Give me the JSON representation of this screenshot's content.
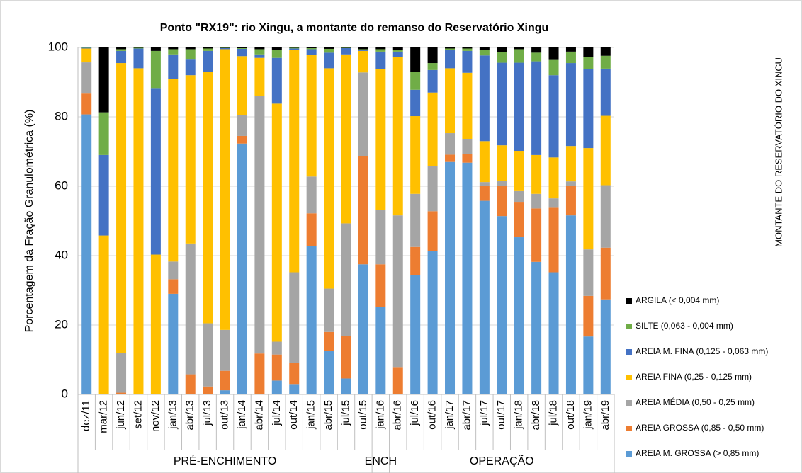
{
  "chart_data": {
    "type": "stacked_bar",
    "title": "Ponto \"RX19\": rio Xingu, a montante do remanso do Reservatório Xingu",
    "y_label": "Porcentagem da Fração Granulométrica (%)",
    "side_label": "MONTANTE DO RESERVATÓRIO DO XINGU",
    "categories": [
      "dez/11",
      "mar/12",
      "jun/12",
      "set/12",
      "nov/12",
      "jan/13",
      "abr/13",
      "jul/13",
      "out/13",
      "jan/14",
      "abr/14",
      "jul/14",
      "out/14",
      "jan/15",
      "abr/15",
      "jul/15",
      "out/15",
      "jan/16",
      "abr/16",
      "jul/16",
      "out/16",
      "jan/17",
      "abr/17",
      "jul/17",
      "out/17",
      "jan/18",
      "abr/18",
      "jul/18",
      "out/18",
      "jan/19",
      "abr/19"
    ],
    "groups": [
      {
        "label": "PRÉ-ENCHIMENTO",
        "count": 17
      },
      {
        "label": "ENCH",
        "count": 1
      },
      {
        "label": "OPERAÇÃO",
        "count": 13
      }
    ],
    "series": [
      {
        "name": "AREIA M. GROSSA (> 0,85 mm)",
        "color": "#5b9bd5",
        "values": [
          80.7,
          0,
          0,
          0,
          0,
          29,
          0,
          0,
          1.2,
          72.3,
          0,
          4,
          2.8,
          42.8,
          12.6,
          4.6,
          37.5,
          25.3,
          0,
          34.4,
          41.3,
          67,
          66.8,
          55.8,
          51.4,
          45.3,
          38.2,
          35.2,
          51.6,
          16.7,
          27.4
        ]
      },
      {
        "name": "AREIA GROSSA (0,85 - 0,50 mm)",
        "color": "#ed7d31",
        "values": [
          6,
          0,
          0.5,
          0,
          0,
          4.2,
          5.8,
          2.3,
          5.6,
          2.2,
          11.8,
          7.5,
          6.3,
          9.4,
          5.4,
          12.2,
          31.1,
          12.2,
          7.7,
          8.1,
          11.5,
          2.1,
          2.5,
          4.4,
          8.6,
          10.2,
          15.4,
          18.6,
          8.4,
          11.7,
          14.9
        ]
      },
      {
        "name": "AREIA MÉDIA (0,50 - 0,25 mm)",
        "color": "#a5a5a5",
        "values": [
          9,
          0,
          11.5,
          0.2,
          0,
          5.1,
          37.7,
          18.2,
          11.8,
          6,
          74.2,
          3.7,
          26.1,
          10.6,
          12.5,
          32.5,
          24.2,
          15.7,
          43.9,
          15.3,
          13,
          6.2,
          4.2,
          1,
          1.6,
          3.1,
          4.2,
          2.7,
          1.4,
          13.4,
          18
        ]
      },
      {
        "name": "AREIA FINA (0,25 - 0,125 mm)",
        "color": "#ffc000",
        "values": [
          4,
          45.8,
          83.5,
          93.8,
          40.3,
          52.7,
          48.5,
          72.5,
          80.9,
          17,
          11,
          68.6,
          64.1,
          35,
          63.5,
          48.7,
          6.2,
          40.6,
          45.7,
          22.4,
          21.2,
          18.7,
          19.2,
          11.8,
          10.2,
          11.6,
          11.2,
          11.8,
          10.2,
          29.2,
          20
        ]
      },
      {
        "name": "AREIA M. FINA (0,125 - 0,063 mm)",
        "color": "#4472c4",
        "values": [
          0.2,
          23.2,
          3.5,
          5.7,
          48,
          7,
          4.5,
          6,
          0.3,
          2.1,
          1,
          13.2,
          0.4,
          1.7,
          4.5,
          1.8,
          0.3,
          5,
          1.5,
          7.6,
          6.5,
          5.3,
          6.3,
          24.7,
          23.8,
          25.4,
          27,
          23.7,
          23.9,
          22.8,
          13.6
        ]
      },
      {
        "name": "SILTE (0,063 -  0,004 mm)",
        "color": "#70ad47",
        "values": [
          0.1,
          12.3,
          0.5,
          0.2,
          10.7,
          1.5,
          3,
          0.7,
          0.1,
          0.2,
          1.5,
          2.3,
          0.2,
          0.3,
          1.1,
          0.1,
          0.2,
          0.7,
          0.5,
          5.2,
          2,
          0.4,
          0.7,
          1.6,
          3.1,
          3.9,
          2.5,
          4.4,
          3.3,
          3.4,
          3.7
        ]
      },
      {
        "name": "ARGILA (< 0,004 mm)",
        "color": "#000000",
        "values": [
          0,
          18.7,
          0.5,
          0.1,
          1,
          0.5,
          0.5,
          0.3,
          0.1,
          0.2,
          0.5,
          0.7,
          0.1,
          0.2,
          0.4,
          0.1,
          0.5,
          0.5,
          0.7,
          7,
          4.5,
          0.3,
          0.3,
          0.7,
          1.3,
          0.5,
          1.5,
          3.6,
          1.2,
          2.8,
          2.4
        ]
      }
    ],
    "ylim": [
      0,
      100
    ],
    "yticks": [
      0,
      20,
      40,
      60,
      80,
      100
    ],
    "grid": true,
    "legend": "right"
  }
}
